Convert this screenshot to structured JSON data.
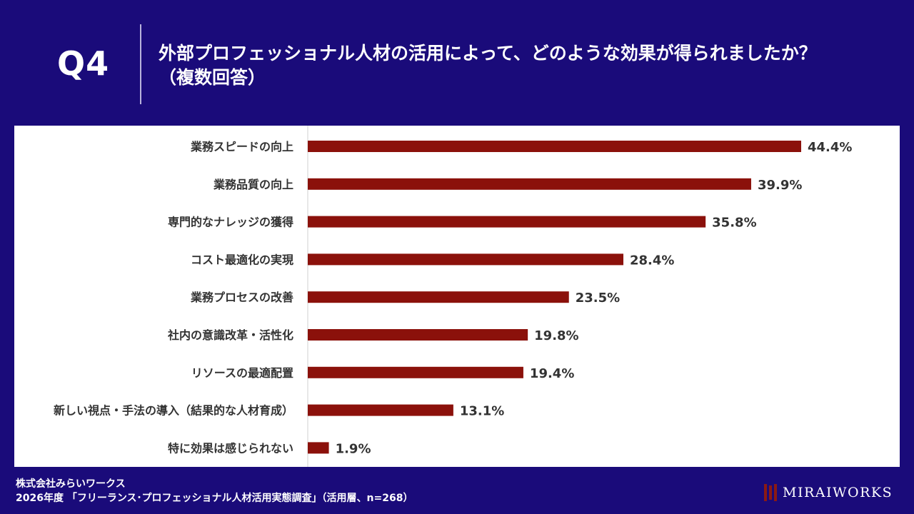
{
  "header": {
    "question_number": "Q4",
    "title_line1": "外部プロフェッショナル人材の活用によって、どのような効果が得られましたか？",
    "title_line2": "（複数回答）"
  },
  "chart_data": {
    "type": "bar",
    "orientation": "horizontal",
    "categories": [
      "業務スピードの向上",
      "業務品質の向上",
      "専門的なナレッジの獲得",
      "コスト最適化の実現",
      "業務プロセスの改善",
      "社内の意識改革・活性化",
      "リソースの最適配置",
      "新しい視点・手法の導入（結果的な人材育成）",
      "特に効果は感じられない"
    ],
    "values": [
      44.4,
      39.9,
      35.8,
      28.4,
      23.5,
      19.8,
      19.4,
      13.1,
      1.9
    ],
    "value_labels": [
      "44.4%",
      "39.9%",
      "35.8%",
      "28.4%",
      "23.5%",
      "19.8%",
      "19.4%",
      "13.1%",
      "1.9%"
    ],
    "unit": "%",
    "xlim": [
      0,
      50
    ],
    "bar_color": "#8b110b",
    "grid": false
  },
  "footer": {
    "company": "株式会社みらいワークス",
    "source": "2026年度 「フリーランス･プロフェッショナル人材活用実態調査」（活用層、n=268）"
  },
  "logo": {
    "text": "MIRAIWORKS",
    "mark_color": "#8b1a14"
  },
  "colors": {
    "background": "#1a0b7a",
    "panel": "#ffffff",
    "text_dark": "#333333"
  }
}
